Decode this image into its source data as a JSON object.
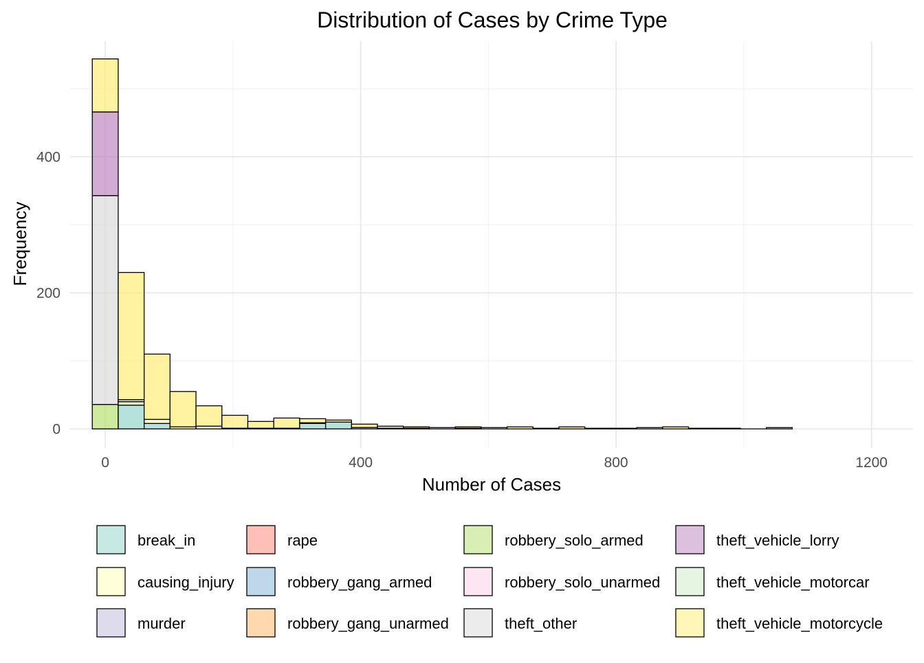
{
  "chart_data": {
    "type": "bar",
    "title": "Distribution of Cases by Crime Type",
    "xlabel": "Number of Cases",
    "ylabel": "Frequency",
    "xlim": [
      -55,
      1265
    ],
    "ylim": [
      -28,
      570
    ],
    "x_ticks": [
      0,
      400,
      800,
      1200
    ],
    "y_ticks": [
      0,
      200,
      400
    ],
    "grid": true,
    "legend_position": "bottom",
    "bin_width": 40.6,
    "bin_start": -20.3,
    "series": [
      {
        "name": "break_in",
        "color": "#8DD3C7",
        "values": [
          0,
          35,
          8,
          0,
          0,
          0,
          0,
          0,
          8,
          10,
          2,
          1,
          1,
          0,
          1,
          0,
          0,
          0,
          0,
          0,
          0,
          0,
          0,
          0,
          0,
          0,
          0
        ]
      },
      {
        "name": "causing_injury",
        "color": "#FFFFB3",
        "values": [
          0,
          5,
          6,
          3,
          4,
          1,
          1,
          1,
          1,
          0,
          0,
          0,
          0,
          0,
          0,
          0,
          0,
          0,
          0,
          0,
          0,
          0,
          0,
          0,
          0,
          0,
          0
        ]
      },
      {
        "name": "murder",
        "color": "#BEBADA",
        "values": [
          0,
          0,
          0,
          0,
          0,
          0,
          0,
          0,
          0,
          0,
          0,
          0,
          0,
          0,
          0,
          0,
          0,
          0,
          0,
          0,
          0,
          0,
          0,
          0,
          0,
          0,
          0
        ]
      },
      {
        "name": "rape",
        "color": "#FB8072",
        "values": [
          0,
          0,
          0,
          0,
          0,
          0,
          0,
          0,
          0,
          0,
          0,
          0,
          0,
          0,
          0,
          0,
          0,
          0,
          0,
          0,
          0,
          0,
          0,
          0,
          0,
          0,
          0
        ]
      },
      {
        "name": "robbery_gang_armed",
        "color": "#80B1D3",
        "values": [
          0,
          0,
          0,
          0,
          0,
          0,
          0,
          0,
          0,
          0,
          0,
          0,
          0,
          0,
          0,
          0,
          0,
          0,
          0,
          0,
          0,
          0,
          0,
          0,
          0,
          0,
          0
        ]
      },
      {
        "name": "robbery_gang_unarmed",
        "color": "#FDB462",
        "values": [
          0,
          0,
          0,
          0,
          0,
          0,
          0,
          0,
          0,
          0,
          0,
          0,
          0,
          0,
          0,
          0,
          0,
          0,
          0,
          0,
          0,
          0,
          0,
          0,
          0,
          0,
          0
        ]
      },
      {
        "name": "robbery_solo_armed",
        "color": "#B3DE69",
        "values": [
          36,
          0,
          0,
          0,
          0,
          0,
          0,
          0,
          0,
          0,
          0,
          0,
          0,
          0,
          0,
          0,
          0,
          0,
          0,
          0,
          0,
          0,
          0,
          0,
          0,
          0,
          0
        ]
      },
      {
        "name": "robbery_solo_unarmed",
        "color": "#FCCDE5",
        "values": [
          0,
          0,
          0,
          0,
          0,
          0,
          0,
          0,
          0,
          0,
          0,
          0,
          0,
          0,
          0,
          0,
          0,
          0,
          0,
          0,
          0,
          0,
          0,
          0,
          0,
          0,
          0
        ]
      },
      {
        "name": "theft_other",
        "color": "#D9D9D9",
        "values": [
          307,
          0,
          0,
          0,
          0,
          0,
          0,
          0,
          0,
          0,
          0,
          0,
          0,
          0,
          0,
          0,
          0,
          0,
          0,
          0,
          0,
          0,
          0,
          0,
          0,
          0,
          0
        ]
      },
      {
        "name": "theft_vehicle_lorry",
        "color": "#BC80BD",
        "values": [
          123,
          0,
          0,
          0,
          0,
          0,
          0,
          0,
          0,
          0,
          0,
          0,
          0,
          0,
          0,
          0,
          0,
          0,
          0,
          0,
          0,
          0,
          0,
          0,
          0,
          0,
          0
        ]
      },
      {
        "name": "theft_vehicle_motorcar",
        "color": "#CCEBC5",
        "values": [
          0,
          3,
          0,
          0,
          0,
          0,
          0,
          0,
          0,
          0,
          0,
          0,
          0,
          0,
          0,
          0,
          0,
          0,
          0,
          0,
          0,
          0,
          0,
          0,
          0,
          0,
          0
        ]
      },
      {
        "name": "theft_vehicle_motorcycle",
        "color": "#FFED6F",
        "values": [
          78,
          187,
          96,
          52,
          30,
          19,
          10,
          15,
          6,
          3,
          5,
          3,
          2,
          2,
          2,
          2,
          3,
          1,
          3,
          1,
          1,
          2,
          3,
          1,
          1,
          0,
          2
        ]
      }
    ]
  }
}
